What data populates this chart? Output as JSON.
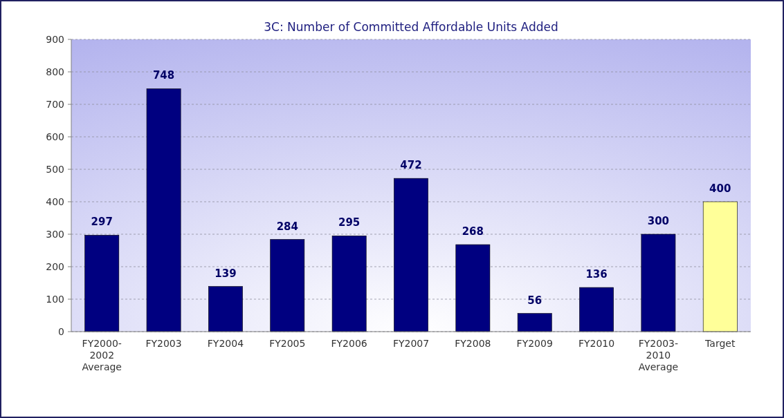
{
  "chart_data": {
    "type": "bar",
    "title": "3C: Number of Committed Affordable Units Added",
    "categories": [
      "FY2000-2002 Average",
      "FY2003",
      "FY2004",
      "FY2005",
      "FY2006",
      "FY2007",
      "FY2008",
      "FY2009",
      "FY2010",
      "FY2003-2010 Average",
      "Target"
    ],
    "values": [
      297,
      748,
      139,
      284,
      295,
      472,
      268,
      56,
      136,
      300,
      400
    ],
    "colors": [
      "#000080",
      "#000080",
      "#000080",
      "#000080",
      "#000080",
      "#000080",
      "#000080",
      "#000080",
      "#000080",
      "#000080",
      "#ffff99"
    ],
    "ylim": [
      0,
      900
    ],
    "yticks": [
      0,
      100,
      200,
      300,
      400,
      500,
      600,
      700,
      800,
      900
    ],
    "grid": "y",
    "data_labels": true
  }
}
